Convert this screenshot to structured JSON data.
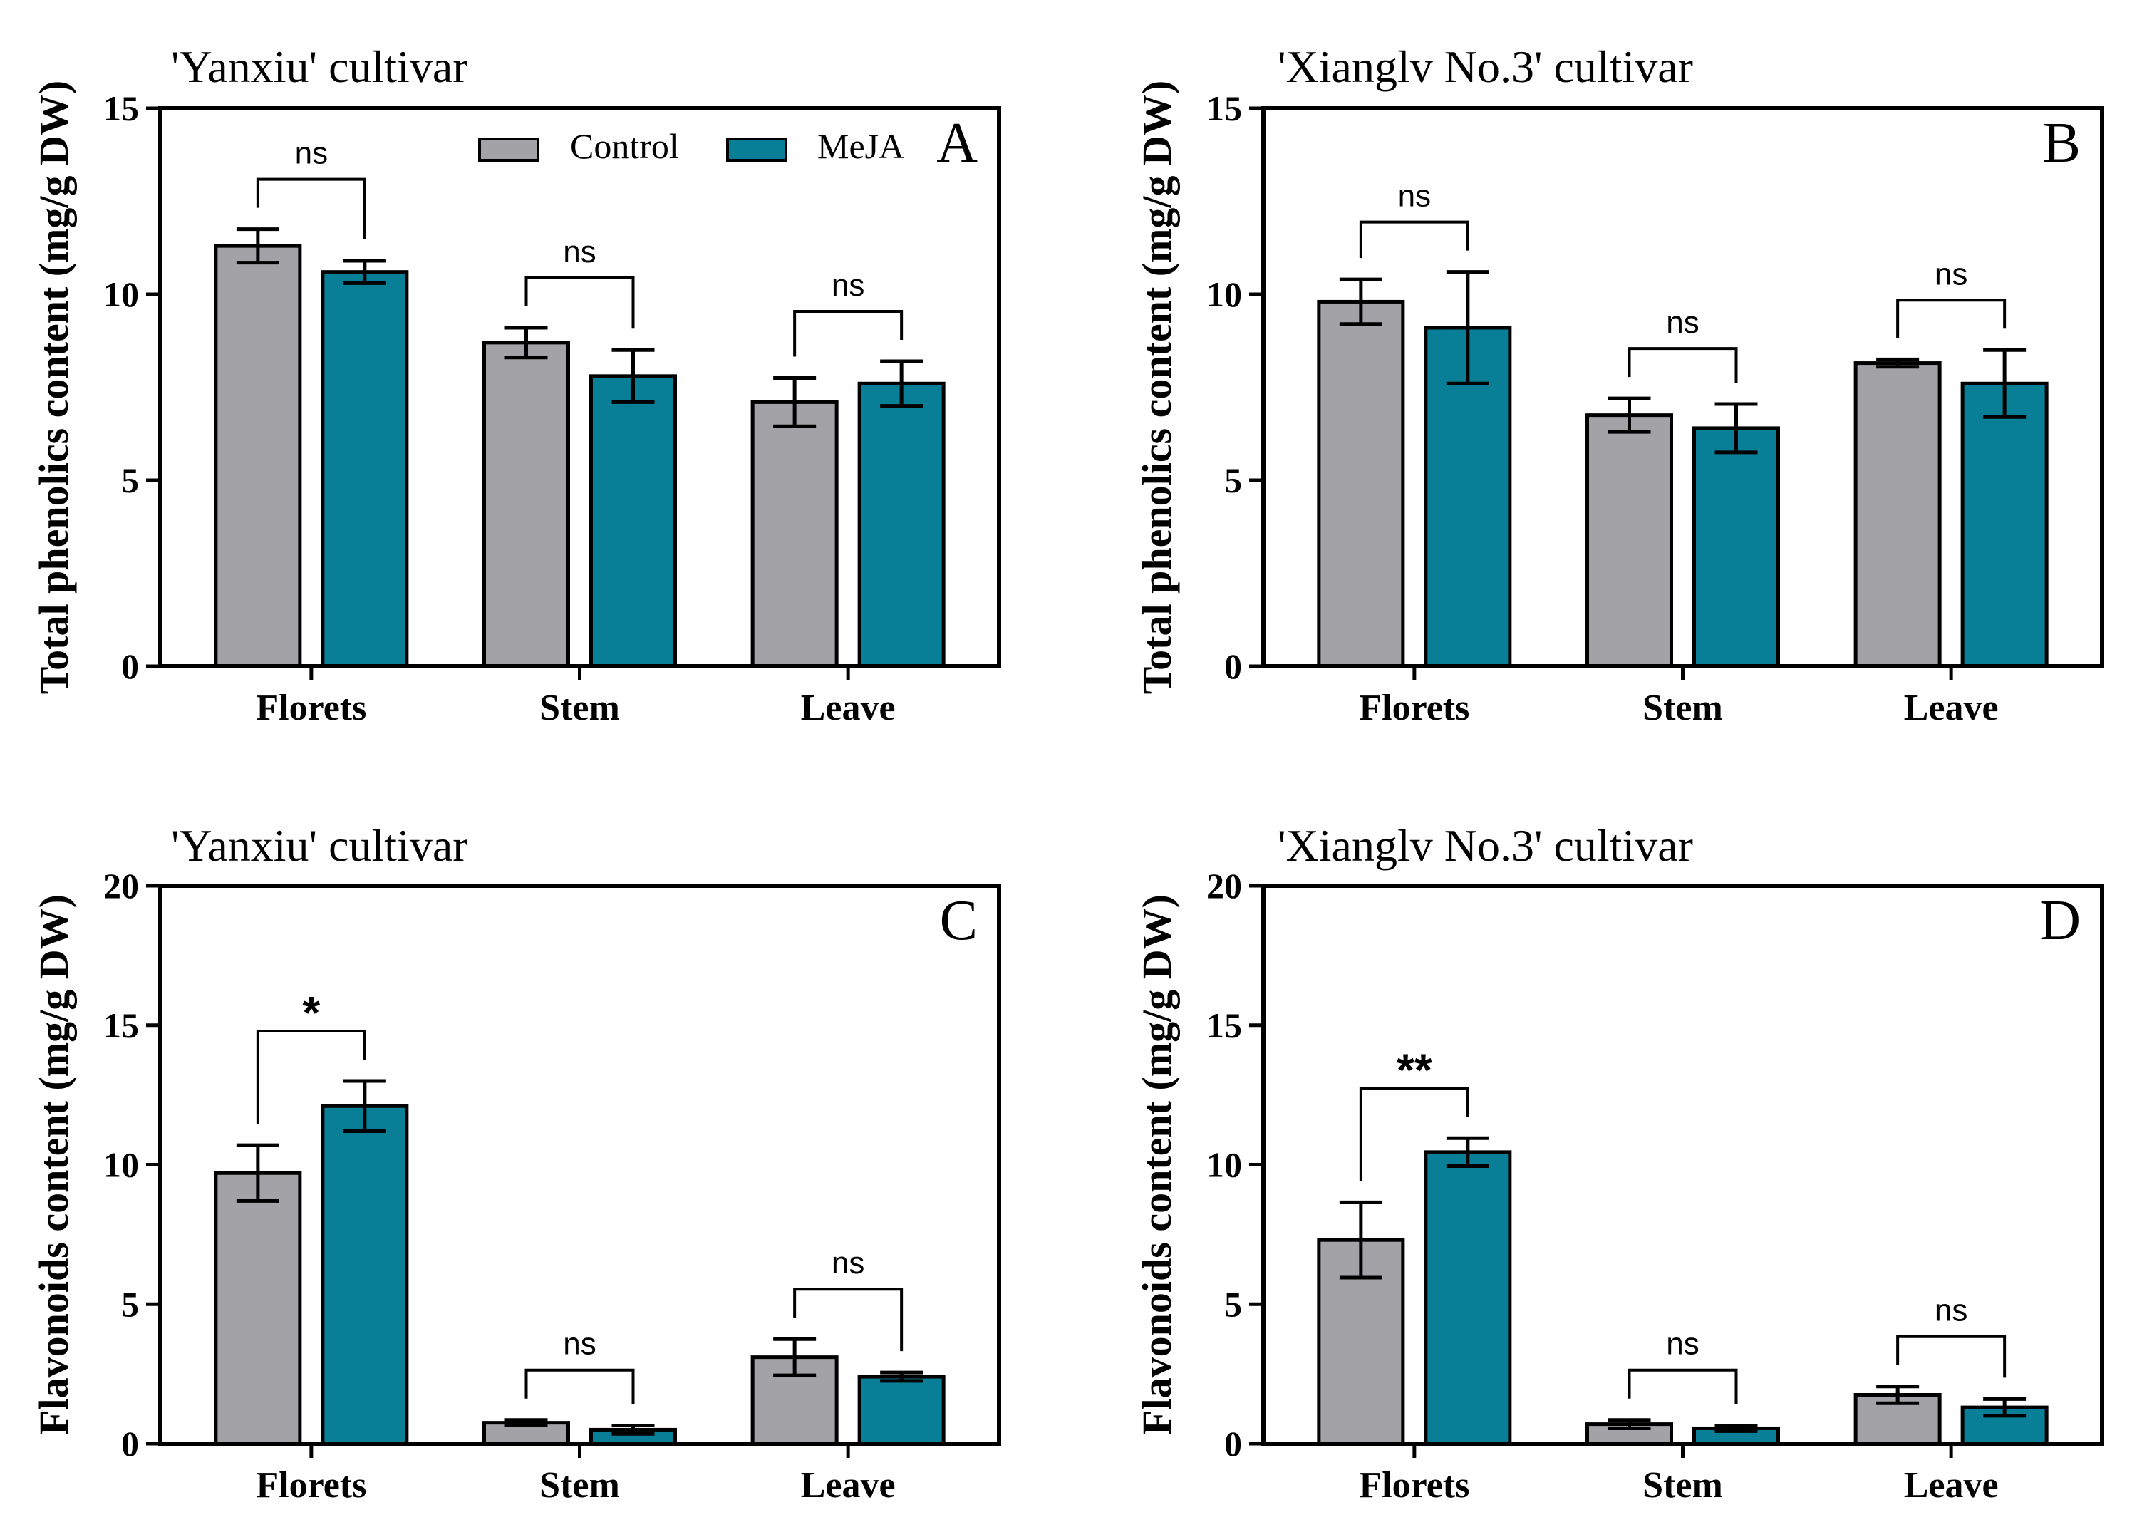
{
  "colors": {
    "control": "#a3a2a7",
    "meja": "#087f97",
    "ink": "#000000"
  },
  "legend": {
    "control": "Control",
    "meja": "MeJA"
  },
  "chart_data": [
    {
      "type": "bar",
      "panel": "A",
      "title": "'Yanxiu' cultivar",
      "ylabel": "Total phenolics content  (mg/g DW)",
      "xlabel": "",
      "ylim": [
        0,
        15
      ],
      "yticks": [
        0,
        5,
        10,
        15
      ],
      "categories": [
        "Florets",
        "Stem",
        "Leave"
      ],
      "series": [
        {
          "name": "Control",
          "values": [
            11.3,
            8.7,
            7.1
          ],
          "errors": [
            0.45,
            0.4,
            0.65
          ]
        },
        {
          "name": "MeJA",
          "values": [
            10.6,
            7.8,
            7.6
          ],
          "errors": [
            0.3,
            0.7,
            0.6
          ]
        }
      ],
      "significance": [
        "ns",
        "ns",
        "ns"
      ],
      "legend_position": "top-right"
    },
    {
      "type": "bar",
      "panel": "B",
      "title": "'Xianglv No.3' cultivar",
      "ylabel": "Total phenolics content  (mg/g DW)",
      "xlabel": "",
      "ylim": [
        0,
        15
      ],
      "yticks": [
        0,
        5,
        10,
        15
      ],
      "categories": [
        "Florets",
        "Stem",
        "Leave"
      ],
      "series": [
        {
          "name": "Control",
          "values": [
            9.8,
            6.75,
            8.15
          ],
          "errors": [
            0.6,
            0.45,
            0.1
          ]
        },
        {
          "name": "MeJA",
          "values": [
            9.1,
            6.4,
            7.6
          ],
          "errors": [
            1.5,
            0.65,
            0.9
          ]
        }
      ],
      "significance": [
        "ns",
        "ns",
        "ns"
      ]
    },
    {
      "type": "bar",
      "panel": "C",
      "title": "'Yanxiu' cultivar",
      "ylabel": "Flavonoids content  (mg/g DW)",
      "xlabel": "",
      "ylim": [
        0,
        20
      ],
      "yticks": [
        0,
        5,
        10,
        15,
        20
      ],
      "categories": [
        "Florets",
        "Stem",
        "Leave"
      ],
      "series": [
        {
          "name": "Control",
          "values": [
            9.7,
            0.75,
            3.1
          ],
          "errors": [
            1.0,
            0.1,
            0.65
          ]
        },
        {
          "name": "MeJA",
          "values": [
            12.1,
            0.5,
            2.4
          ],
          "errors": [
            0.9,
            0.15,
            0.15
          ]
        }
      ],
      "significance": [
        "*",
        "ns",
        "ns"
      ]
    },
    {
      "type": "bar",
      "panel": "D",
      "title": "'Xianglv No.3' cultivar",
      "ylabel": "Flavonoids content  (mg/g DW)",
      "xlabel": "",
      "ylim": [
        0,
        20
      ],
      "yticks": [
        0,
        5,
        10,
        15,
        20
      ],
      "categories": [
        "Florets",
        "Stem",
        "Leave"
      ],
      "series": [
        {
          "name": "Control",
          "values": [
            7.3,
            0.7,
            1.75
          ],
          "errors": [
            1.35,
            0.15,
            0.3
          ]
        },
        {
          "name": "MeJA",
          "values": [
            10.45,
            0.55,
            1.3
          ],
          "errors": [
            0.5,
            0.1,
            0.3
          ]
        }
      ],
      "significance": [
        "**",
        "ns",
        "ns"
      ]
    }
  ]
}
